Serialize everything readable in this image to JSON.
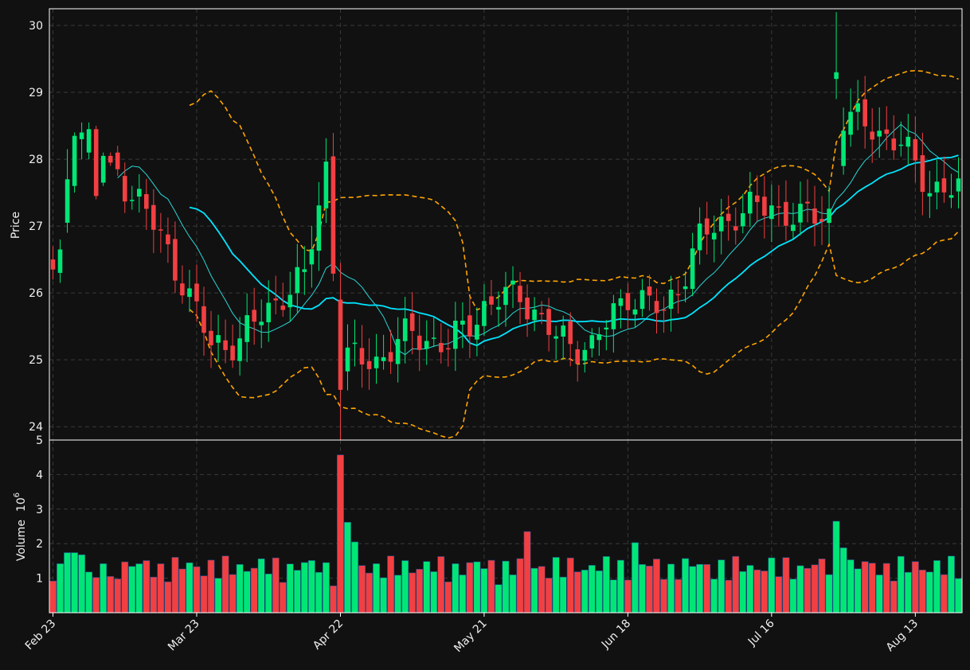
{
  "chart_data": {
    "type": "candlestick",
    "colors": {
      "background": "#111111",
      "up": "#00e676",
      "down": "#f23f42",
      "ma_fast": "#2ad6d6",
      "ma_slow": "#00e5ff",
      "bollinger": "#ffa500",
      "grid": "#3a3a3a",
      "axis": "#ffffff"
    },
    "price_panel": {
      "ylabel": "Price",
      "ylim": [
        23.8,
        30.25
      ],
      "yticks": [
        "24",
        "25",
        "26",
        "27",
        "28",
        "29",
        "30"
      ],
      "grid": true
    },
    "volume_panel": {
      "ylabel": "Volume",
      "exponent_label": "10",
      "exponent": "6",
      "ylim": [
        0,
        5
      ],
      "yticks": [
        "1",
        "2",
        "3",
        "4",
        "5"
      ],
      "grid": true
    },
    "xticks": [
      {
        "label": "Feb 23",
        "index": 0
      },
      {
        "label": "Mar 23",
        "index": 20
      },
      {
        "label": "Apr 22",
        "index": 40
      },
      {
        "label": "May 21",
        "index": 60
      },
      {
        "label": "Jun 18",
        "index": 80
      },
      {
        "label": "Jul 16",
        "index": 100
      },
      {
        "label": "Aug 13",
        "index": 120
      }
    ],
    "n_points": 127,
    "seed_ohlc": [
      [
        26.5,
        26.7,
        26.2,
        26.35
      ],
      [
        26.3,
        26.8,
        26.15,
        26.65
      ],
      [
        27.05,
        28.15,
        26.9,
        27.7
      ],
      [
        27.6,
        28.4,
        27.5,
        28.35
      ],
      [
        28.3,
        28.55,
        28.0,
        28.4
      ],
      [
        28.1,
        28.55,
        28.0,
        28.45
      ],
      [
        28.45,
        28.5,
        27.4,
        27.45
      ],
      [
        27.65,
        28.1,
        27.6,
        28.05
      ],
      [
        28.05,
        28.1,
        27.9,
        27.95
      ],
      [
        28.1,
        28.2,
        27.75,
        27.85
      ]
    ],
    "volume_seed": [
      0.92,
      1.42,
      1.74,
      1.74,
      1.68,
      1.18,
      1.02,
      1.42,
      1.05,
      0.98
    ],
    "volume_spikes": [
      {
        "index": 40,
        "value": 4.57
      },
      {
        "index": 41,
        "value": 2.62
      },
      {
        "index": 42,
        "value": 2.05
      },
      {
        "index": 66,
        "value": 2.35
      },
      {
        "index": 81,
        "value": 2.03
      },
      {
        "index": 109,
        "value": 2.65
      },
      {
        "index": 110,
        "value": 1.88
      }
    ]
  }
}
